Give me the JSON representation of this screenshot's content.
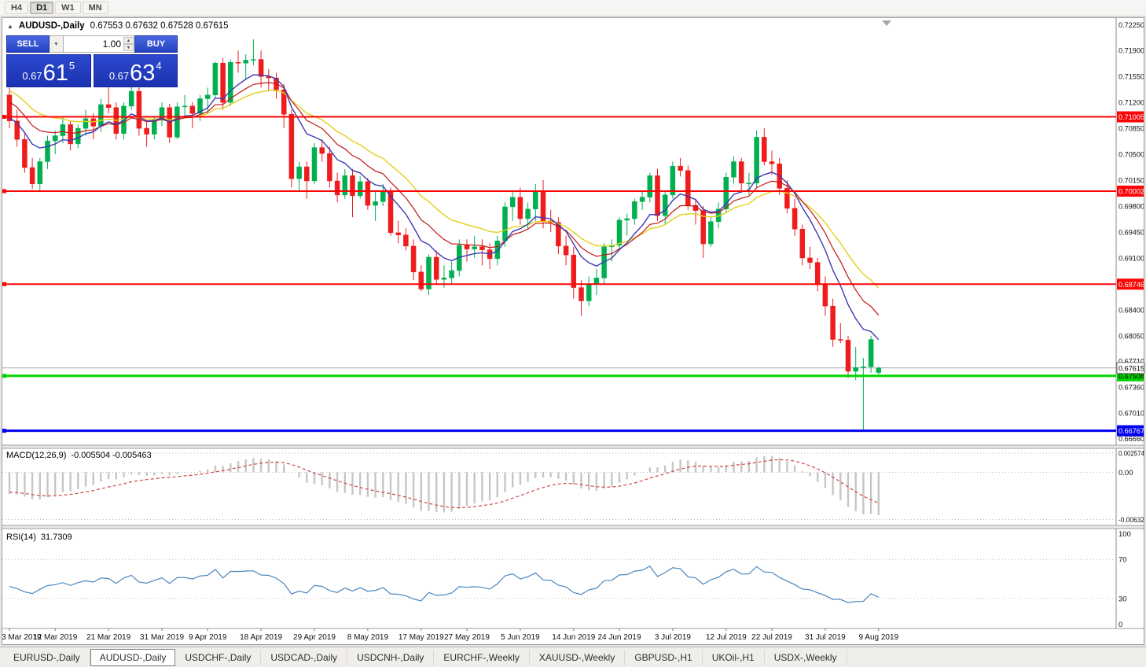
{
  "toolbar": {
    "timeframes": [
      {
        "label": "H4",
        "active": false
      },
      {
        "label": "D1",
        "active": true
      },
      {
        "label": "W1",
        "active": false
      },
      {
        "label": "MN",
        "active": false
      }
    ]
  },
  "window": {
    "title_symbol": "AUDUSD-,Daily",
    "title_ohlc": "0.67553 0.67632 0.67528 0.67615",
    "collapse_icon": "▲",
    "shift_icon": "▼"
  },
  "one_click": {
    "sell_label": "SELL",
    "buy_label": "BUY",
    "volume": "1.00",
    "dropdown_icon": "▼",
    "spinner_up": "▲",
    "spinner_down": "▼",
    "sell_price": {
      "prefix": "0.67",
      "big": "61",
      "sup": "5"
    },
    "buy_price": {
      "prefix": "0.67",
      "big": "63",
      "sup": "4"
    }
  },
  "indicator_labels": {
    "macd_name": "MACD(12,26,9)",
    "macd_values": "-0.005504 -0.005463",
    "rsi_name": "RSI(14)",
    "rsi_value": "31.7309"
  },
  "tabs": [
    {
      "label": "EURUSD-,Daily",
      "active": false
    },
    {
      "label": "AUDUSD-,Daily",
      "active": true
    },
    {
      "label": "USDCHF-,Daily",
      "active": false
    },
    {
      "label": "USDCAD-,Daily",
      "active": false
    },
    {
      "label": "USDCNH-,Daily",
      "active": false
    },
    {
      "label": "EURCHF-,Weekly",
      "active": false
    },
    {
      "label": "XAUUSD-,Weekly",
      "active": false
    },
    {
      "label": "GBPUSD-,H1",
      "active": false
    },
    {
      "label": "UKOil-,H1",
      "active": false
    },
    {
      "label": "USDX-,Weekly",
      "active": false
    }
  ],
  "chart_data": {
    "type": "candlestick",
    "symbol": "AUDUSD-",
    "timeframe": "Daily",
    "colors": {
      "up": "#00b050",
      "down": "#ee1c1c",
      "ma_fast": "#3a3ab4",
      "ma_mid": "#c21616",
      "ma_slow": "#e3cf1d",
      "macd_hist": "#c6c6c6",
      "macd_signal": "#d24343",
      "rsi_line": "#4a86c0",
      "bid_line": "#ababab",
      "grid_dotted": "#b9b9b9"
    },
    "price_axis": {
      "max": 0.72338,
      "min": 0.66572,
      "ticks": [
        "0.72250",
        "0.71900",
        "0.71550",
        "0.71200",
        "0.70850",
        "0.70500",
        "0.70150",
        "0.69800",
        "0.69450",
        "0.69100",
        "0.68750",
        "0.68400",
        "0.68050",
        "0.67710",
        "0.67360",
        "0.67010",
        "0.66660"
      ]
    },
    "current_price": {
      "value": 0.67615,
      "label": "0.67615"
    },
    "hlines": [
      {
        "price": 0.71005,
        "label": "0.71005",
        "color": "#fb0505",
        "text": "#ffffff",
        "width": 2
      },
      {
        "price": 0.70002,
        "label": "0.70002",
        "color": "#fb0505",
        "text": "#ffffff",
        "width": 2
      },
      {
        "price": 0.68746,
        "label": "0.68746",
        "color": "#fb0505",
        "text": "#ffffff",
        "width": 2
      },
      {
        "price": 0.67508,
        "label": "0.67508",
        "color": "#00d400",
        "text": "#000000",
        "width": 3
      },
      {
        "price": 0.66767,
        "label": "0.66767",
        "color": "#0000f0",
        "text": "#ffffff",
        "width": 3
      }
    ],
    "moving_averages": [
      {
        "type": "ema",
        "period": 21,
        "seed": 0.714,
        "color": "#e3cf1d",
        "width": 1.4
      },
      {
        "type": "ema",
        "period": 13,
        "seed": 0.7125,
        "color": "#c21616",
        "width": 1.2
      },
      {
        "type": "ema",
        "period": 8,
        "seed": 0.71,
        "color": "#3a3ab4",
        "width": 1.4
      }
    ],
    "x_labels": [
      {
        "i": 0,
        "label": "3 Mar 2019"
      },
      {
        "i": 6,
        "label": "12 Mar 2019"
      },
      {
        "i": 13,
        "label": "21 Mar 2019"
      },
      {
        "i": 20,
        "label": "31 Mar 2019"
      },
      {
        "i": 26,
        "label": "9 Apr 2019"
      },
      {
        "i": 33,
        "label": "18 Apr 2019"
      },
      {
        "i": 40,
        "label": "29 Apr 2019"
      },
      {
        "i": 47,
        "label": "8 May 2019"
      },
      {
        "i": 54,
        "label": "17 May 2019"
      },
      {
        "i": 60,
        "label": "27 May 2019"
      },
      {
        "i": 67,
        "label": "5 Jun 2019"
      },
      {
        "i": 74,
        "label": "14 Jun 2019"
      },
      {
        "i": 80,
        "label": "24 Jun 2019"
      },
      {
        "i": 87,
        "label": "3 Jul 2019"
      },
      {
        "i": 94,
        "label": "12 Jul 2019"
      },
      {
        "i": 100,
        "label": "22 Jul 2019"
      },
      {
        "i": 107,
        "label": "31 Jul 2019"
      },
      {
        "i": 114,
        "label": "9 Aug 2019"
      }
    ],
    "candles": [
      [
        0.713,
        0.714,
        0.7085,
        0.7095
      ],
      [
        0.7095,
        0.711,
        0.706,
        0.707
      ],
      [
        0.707,
        0.708,
        0.7025,
        0.7032
      ],
      [
        0.7032,
        0.7045,
        0.7003,
        0.701
      ],
      [
        0.701,
        0.7045,
        0.7,
        0.704
      ],
      [
        0.704,
        0.7075,
        0.703,
        0.7068
      ],
      [
        0.7068,
        0.7082,
        0.705,
        0.7075
      ],
      [
        0.7075,
        0.71,
        0.7065,
        0.709
      ],
      [
        0.709,
        0.7095,
        0.7055,
        0.7064
      ],
      [
        0.7064,
        0.709,
        0.7058,
        0.7085
      ],
      [
        0.7085,
        0.711,
        0.7075,
        0.7098
      ],
      [
        0.7098,
        0.7105,
        0.707,
        0.7088
      ],
      [
        0.7088,
        0.7125,
        0.708,
        0.7117
      ],
      [
        0.7117,
        0.7165,
        0.7105,
        0.7113
      ],
      [
        0.7113,
        0.712,
        0.707,
        0.7078
      ],
      [
        0.7078,
        0.712,
        0.707,
        0.7115
      ],
      [
        0.7115,
        0.7147,
        0.711,
        0.7135
      ],
      [
        0.7135,
        0.714,
        0.7075,
        0.7085
      ],
      [
        0.7085,
        0.7095,
        0.706,
        0.7077
      ],
      [
        0.7077,
        0.71,
        0.707,
        0.7096
      ],
      [
        0.7096,
        0.712,
        0.7088,
        0.7113
      ],
      [
        0.7113,
        0.7118,
        0.7065,
        0.7073
      ],
      [
        0.7073,
        0.712,
        0.707,
        0.7114
      ],
      [
        0.7114,
        0.713,
        0.71,
        0.7115
      ],
      [
        0.7115,
        0.712,
        0.7085,
        0.7105
      ],
      [
        0.7105,
        0.713,
        0.7095,
        0.7125
      ],
      [
        0.7125,
        0.714,
        0.7105,
        0.713
      ],
      [
        0.713,
        0.7175,
        0.7125,
        0.7173
      ],
      [
        0.7173,
        0.718,
        0.711,
        0.712
      ],
      [
        0.712,
        0.7178,
        0.7115,
        0.7174
      ],
      [
        0.7174,
        0.719,
        0.716,
        0.7173
      ],
      [
        0.7173,
        0.7185,
        0.715,
        0.7177
      ],
      [
        0.7177,
        0.7205,
        0.717,
        0.7178
      ],
      [
        0.7178,
        0.719,
        0.714,
        0.7155
      ],
      [
        0.7155,
        0.7165,
        0.7135,
        0.7153
      ],
      [
        0.7153,
        0.716,
        0.7125,
        0.7137
      ],
      [
        0.7137,
        0.7145,
        0.7085,
        0.7104
      ],
      [
        0.7104,
        0.711,
        0.7005,
        0.7017
      ],
      [
        0.7017,
        0.704,
        0.7,
        0.7033
      ],
      [
        0.7033,
        0.704,
        0.699,
        0.7014
      ],
      [
        0.7014,
        0.7065,
        0.701,
        0.7059
      ],
      [
        0.7059,
        0.707,
        0.704,
        0.7051
      ],
      [
        0.7051,
        0.706,
        0.7005,
        0.7014
      ],
      [
        0.7014,
        0.7025,
        0.6985,
        0.6995
      ],
      [
        0.6995,
        0.703,
        0.699,
        0.7021
      ],
      [
        0.7021,
        0.703,
        0.6965,
        0.6994
      ],
      [
        0.6994,
        0.702,
        0.699,
        0.7013
      ],
      [
        0.7013,
        0.7018,
        0.6975,
        0.6981
      ],
      [
        0.6981,
        0.7,
        0.696,
        0.6986
      ],
      [
        0.6986,
        0.701,
        0.698,
        0.7001
      ],
      [
        0.7001,
        0.7005,
        0.694,
        0.6944
      ],
      [
        0.6944,
        0.696,
        0.693,
        0.6941
      ],
      [
        0.6941,
        0.695,
        0.692,
        0.6926
      ],
      [
        0.6926,
        0.6935,
        0.688,
        0.6891
      ],
      [
        0.6891,
        0.69,
        0.6865,
        0.6868
      ],
      [
        0.6868,
        0.6915,
        0.686,
        0.6911
      ],
      [
        0.6911,
        0.692,
        0.6875,
        0.6881
      ],
      [
        0.6881,
        0.69,
        0.687,
        0.6883
      ],
      [
        0.6883,
        0.6905,
        0.6875,
        0.6893
      ],
      [
        0.6893,
        0.6935,
        0.6885,
        0.6927
      ],
      [
        0.6927,
        0.6935,
        0.6905,
        0.6922
      ],
      [
        0.6922,
        0.694,
        0.691,
        0.6925
      ],
      [
        0.6925,
        0.6935,
        0.69,
        0.6921
      ],
      [
        0.6921,
        0.693,
        0.6895,
        0.6909
      ],
      [
        0.6909,
        0.694,
        0.69,
        0.6933
      ],
      [
        0.6933,
        0.6985,
        0.6925,
        0.6979
      ],
      [
        0.6979,
        0.7,
        0.696,
        0.6992
      ],
      [
        0.6992,
        0.7005,
        0.6955,
        0.6963
      ],
      [
        0.6963,
        0.6985,
        0.695,
        0.6976
      ],
      [
        0.6976,
        0.701,
        0.696,
        0.7001
      ],
      [
        0.7001,
        0.7015,
        0.695,
        0.696
      ],
      [
        0.696,
        0.6975,
        0.6945,
        0.6958
      ],
      [
        0.6958,
        0.6965,
        0.6915,
        0.6926
      ],
      [
        0.6926,
        0.694,
        0.69,
        0.6914
      ],
      [
        0.6914,
        0.6925,
        0.6855,
        0.687
      ],
      [
        0.687,
        0.688,
        0.6832,
        0.6852
      ],
      [
        0.6852,
        0.6885,
        0.6845,
        0.6875
      ],
      [
        0.6875,
        0.6895,
        0.686,
        0.6883
      ],
      [
        0.6883,
        0.693,
        0.6875,
        0.6925
      ],
      [
        0.6925,
        0.6935,
        0.6905,
        0.6927
      ],
      [
        0.6927,
        0.6965,
        0.692,
        0.6961
      ],
      [
        0.6961,
        0.697,
        0.694,
        0.6963
      ],
      [
        0.6963,
        0.699,
        0.6955,
        0.6986
      ],
      [
        0.6986,
        0.7,
        0.6975,
        0.6992
      ],
      [
        0.6992,
        0.7025,
        0.6985,
        0.7021
      ],
      [
        0.7021,
        0.703,
        0.696,
        0.6967
      ],
      [
        0.6967,
        0.7,
        0.6955,
        0.6995
      ],
      [
        0.6995,
        0.704,
        0.699,
        0.7034
      ],
      [
        0.7034,
        0.7045,
        0.702,
        0.7028
      ],
      [
        0.7028,
        0.7035,
        0.6975,
        0.6981
      ],
      [
        0.6981,
        0.699,
        0.6955,
        0.6974
      ],
      [
        0.6974,
        0.698,
        0.691,
        0.6929
      ],
      [
        0.6929,
        0.6965,
        0.6925,
        0.6959
      ],
      [
        0.6959,
        0.6985,
        0.695,
        0.6976
      ],
      [
        0.6976,
        0.7025,
        0.697,
        0.7019
      ],
      [
        0.7019,
        0.7047,
        0.701,
        0.704
      ],
      [
        0.704,
        0.7045,
        0.7,
        0.7011
      ],
      [
        0.7011,
        0.7025,
        0.6995,
        0.7011
      ],
      [
        0.7011,
        0.7082,
        0.7005,
        0.7073
      ],
      [
        0.7073,
        0.7085,
        0.7035,
        0.704
      ],
      [
        0.704,
        0.7055,
        0.7022,
        0.7037
      ],
      [
        0.7037,
        0.7045,
        0.6995,
        0.7004
      ],
      [
        0.7004,
        0.7015,
        0.697,
        0.6977
      ],
      [
        0.6977,
        0.699,
        0.694,
        0.6949
      ],
      [
        0.6949,
        0.6955,
        0.69,
        0.691
      ],
      [
        0.691,
        0.6925,
        0.6895,
        0.6904
      ],
      [
        0.6904,
        0.691,
        0.6865,
        0.6874
      ],
      [
        0.6874,
        0.6885,
        0.6832,
        0.6845
      ],
      [
        0.6845,
        0.6855,
        0.679,
        0.68
      ],
      [
        0.68,
        0.6822,
        0.6795,
        0.6799
      ],
      [
        0.6799,
        0.6805,
        0.6748,
        0.6757
      ],
      [
        0.6757,
        0.679,
        0.6745,
        0.6762
      ],
      [
        0.6762,
        0.6775,
        0.6677,
        0.6763
      ],
      [
        0.6763,
        0.6805,
        0.6755,
        0.68
      ],
      [
        0.67553,
        0.67632,
        0.67528,
        0.67615
      ]
    ],
    "macd": {
      "fast": 12,
      "slow": 26,
      "signal": 9,
      "seed_fast": 0.7102,
      "seed_slow": 0.7133,
      "seed_signal": -0.0026,
      "scale_max": 0.003,
      "scale_min": -0.0069,
      "axis": [
        {
          "v": 0.002574,
          "label": "0.002574"
        },
        {
          "v": 0,
          "label": "0.00"
        },
        {
          "v": -0.00632,
          "label": "-0.00632"
        }
      ]
    },
    "rsi": {
      "period": 14,
      "seed_gain": 0.0014,
      "seed_loss": 0.0019,
      "levels": [
        70,
        30
      ],
      "axis": [
        {
          "v": 100,
          "label": "100"
        },
        {
          "v": 70,
          "label": "70"
        },
        {
          "v": 30,
          "label": "30"
        },
        {
          "v": 0,
          "label": "0"
        }
      ]
    }
  }
}
